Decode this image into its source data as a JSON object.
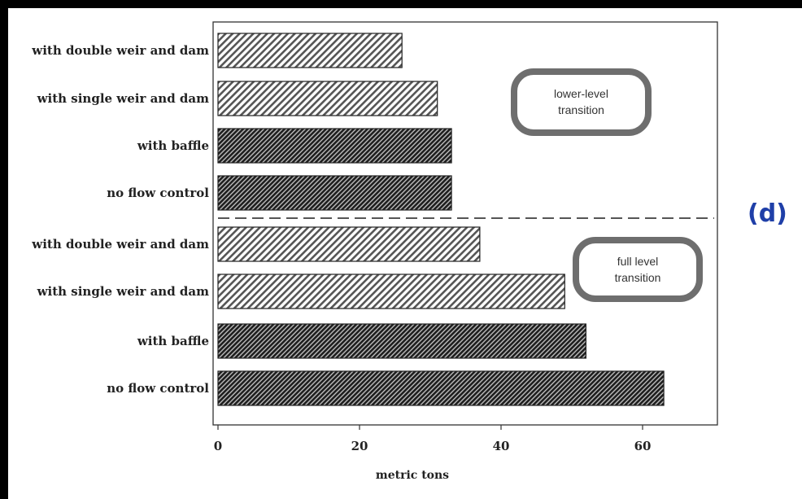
{
  "chart_data": {
    "type": "bar",
    "orientation": "horizontal",
    "panel_label": "(d)",
    "xlabel": "metric tons",
    "xlim": [
      0,
      70
    ],
    "xticks": [
      0,
      20,
      40,
      60
    ],
    "grid": false,
    "groups": [
      {
        "name": "lower-level transition",
        "categories": [
          "with double weir and dam",
          "with single weir and dam",
          "with baffle",
          "no flow control"
        ],
        "values": [
          26,
          31,
          33,
          33
        ]
      },
      {
        "name": "full level transition",
        "categories": [
          "with double weir and dam",
          "with single weir and dam",
          "with baffle",
          "no flow control"
        ],
        "values": [
          37,
          49,
          52,
          63
        ]
      }
    ]
  },
  "colors": {
    "light_bar": "#7a7a7a",
    "dark_bar": "#2b2b2b",
    "panel_label": "#1f3fa8"
  }
}
